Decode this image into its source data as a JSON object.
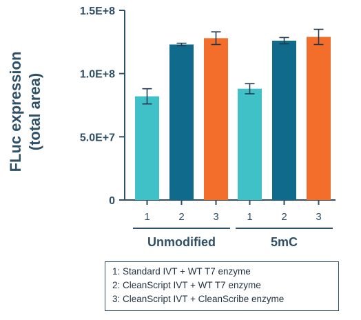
{
  "chart_data": {
    "type": "bar",
    "ylabel": "FLuc expression\n(total area)",
    "ylim": [
      0,
      150000000
    ],
    "yticks": [
      {
        "value": 0,
        "label": "0"
      },
      {
        "value": 50000000,
        "label": "5.0E+7"
      },
      {
        "value": 100000000,
        "label": "1.0E+8"
      },
      {
        "value": 150000000,
        "label": "1.5E+8"
      }
    ],
    "groups": [
      {
        "label": "Unmodified",
        "bars": [
          {
            "category": "1",
            "value": 82000000,
            "error": 6000000,
            "color": "#40c1c7"
          },
          {
            "category": "2",
            "value": 123000000,
            "error": 1000000,
            "color": "#0f6a8b"
          },
          {
            "category": "3",
            "value": 128000000,
            "error": 5000000,
            "color": "#f36d2b"
          }
        ]
      },
      {
        "label": "5mC",
        "bars": [
          {
            "category": "1",
            "value": 88000000,
            "error": 4000000,
            "color": "#40c1c7"
          },
          {
            "category": "2",
            "value": 126000000,
            "error": 2500000,
            "color": "#0f6a8b"
          },
          {
            "category": "3",
            "value": 129000000,
            "error": 6000000,
            "color": "#f36d2b"
          }
        ]
      }
    ],
    "legend": [
      "1: Standard IVT + WT T7 enzyme",
      "2: CleanScript IVT + WT T7 enzyme",
      "3: CleanScript IVT + CleanScribe enzyme"
    ],
    "grid": false,
    "colors": {
      "axis": "#2f4f66",
      "error_bar": "#1f3a4f"
    }
  }
}
